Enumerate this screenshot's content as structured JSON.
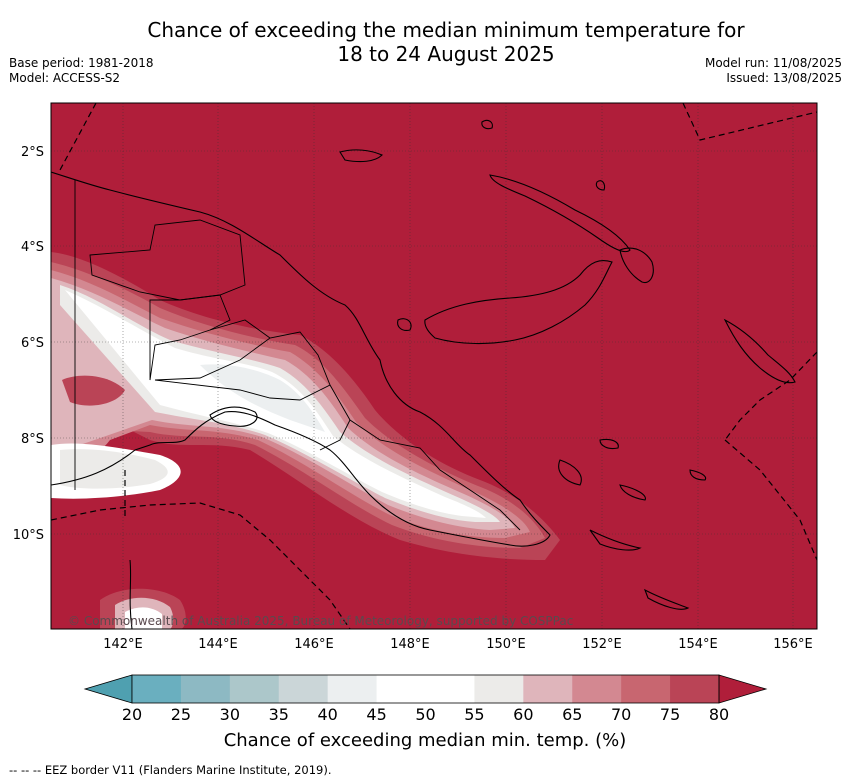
{
  "header": {
    "title_line1": "Chance of exceeding the median minimum temperature for",
    "title_line2": "18 to 24 August 2025",
    "base_period": "Base period: 1981-2018",
    "model": "Model: ACCESS-S2",
    "model_run": "Model run: 11/08/2025",
    "issued": "Issued: 13/08/2025"
  },
  "map": {
    "credit": "© Commonwealth of Australia 2025, Bureau of Meteorology, supported by COSPPac",
    "lat_labels": [
      "2°S",
      "4°S",
      "6°S",
      "8°S",
      "10°S"
    ],
    "lon_labels": [
      "142°E",
      "144°E",
      "146°E",
      "148°E",
      "150°E",
      "152°E",
      "154°E",
      "156°E"
    ],
    "background_color": "#b01e3a",
    "region": "Papua New Guinea"
  },
  "colorbar": {
    "ticks": [
      "20",
      "25",
      "30",
      "35",
      "40",
      "45",
      "50",
      "55",
      "60",
      "65",
      "70",
      "75",
      "80"
    ],
    "colors": [
      "#4fa0b0",
      "#6aafbf",
      "#8db9c3",
      "#acc7ca",
      "#cbd6d8",
      "#eceff0",
      "#ffffff",
      "#ffffff",
      "#ecebe9",
      "#dfb5bb",
      "#d38891",
      "#c86670",
      "#ba4456",
      "#b01e3a"
    ],
    "label": "Chance of exceeding median min. temp. (%)"
  },
  "footnote": "-- -- -- EEZ border V11 (Flanders Marine Institute, 2019)."
}
